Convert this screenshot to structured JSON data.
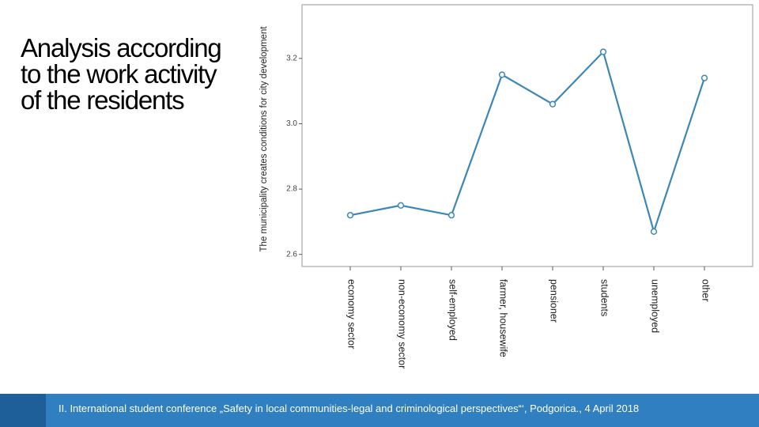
{
  "slide": {
    "title_lines": [
      "Analysis according",
      "to the work activity",
      "of the residents"
    ]
  },
  "footer": {
    "text": "II. International student conference „Safety in local communities-legal and criminological perspectives“‘, Podgorica., 4 April 2018",
    "color": "#2f7fc1"
  },
  "chart_data": {
    "type": "line",
    "categories": [
      "economy sector",
      "non-economy sector",
      "self-employed",
      "farmer, housewife",
      "pensioner",
      "students",
      "unemployed",
      "other"
    ],
    "values": [
      2.72,
      2.75,
      2.72,
      3.15,
      3.06,
      3.22,
      2.67,
      3.14
    ],
    "ylabel": "The municipality creates conditions for city development",
    "yticks": [
      "2.6",
      "2.8",
      "3.0",
      "3.2"
    ],
    "ylim": [
      2.58,
      3.34
    ],
    "grid": false,
    "line_color": "#3c87b6"
  }
}
